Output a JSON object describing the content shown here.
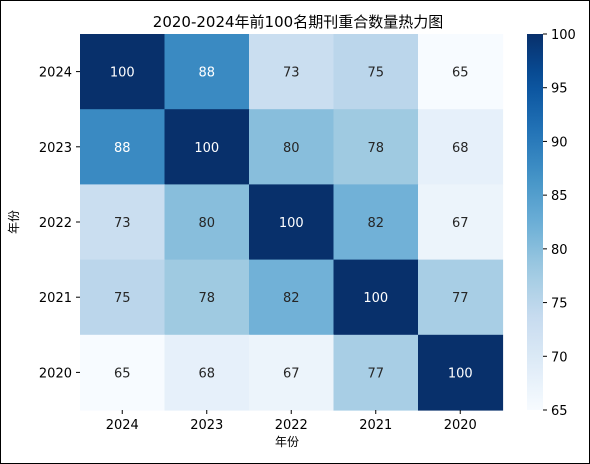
{
  "chart_data": {
    "type": "heatmap",
    "title": "2020-2024年前100名期刊重合数量热力图",
    "xlabel": "年份",
    "ylabel": "年份",
    "x_categories": [
      "2024",
      "2023",
      "2022",
      "2021",
      "2020"
    ],
    "y_categories": [
      "2024",
      "2023",
      "2022",
      "2021",
      "2020"
    ],
    "values": [
      [
        100,
        88,
        73,
        75,
        65
      ],
      [
        88,
        100,
        80,
        78,
        68
      ],
      [
        73,
        80,
        100,
        82,
        67
      ],
      [
        75,
        78,
        82,
        100,
        77
      ],
      [
        65,
        68,
        67,
        77,
        100
      ]
    ],
    "colorbar": {
      "min": 65,
      "max": 100,
      "ticks": [
        65,
        70,
        75,
        80,
        85,
        90,
        95,
        100
      ]
    },
    "colormap": "Blues",
    "colors": {
      "low": "#f7fbff",
      "high": "#08306b"
    }
  }
}
